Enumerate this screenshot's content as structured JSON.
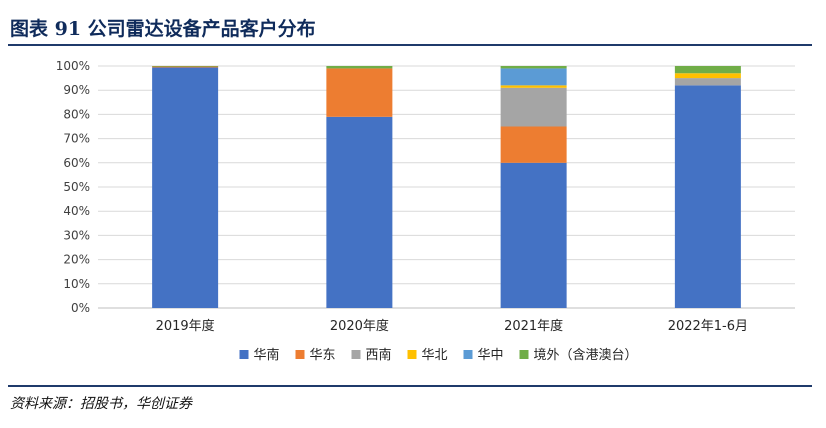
{
  "header": {
    "title": "图表 91   公司雷达设备产品客户分布"
  },
  "chart_data": {
    "type": "bar",
    "stacked": true,
    "categories": [
      "2019年度",
      "2020年度",
      "2021年度",
      "2022年1-6月"
    ],
    "ylim": [
      0,
      100
    ],
    "yticks": [
      "0%",
      "10%",
      "20%",
      "30%",
      "40%",
      "50%",
      "60%",
      "70%",
      "80%",
      "90%",
      "100%"
    ],
    "series": [
      {
        "name": "华南",
        "color": "#4472c4",
        "values": [
          99.4,
          79.0,
          60.0,
          92.0
        ]
      },
      {
        "name": "华东",
        "color": "#ed7d31",
        "values": [
          0.4,
          20.0,
          15.0,
          0.0
        ]
      },
      {
        "name": "西南",
        "color": "#a5a5a5",
        "values": [
          0.0,
          0.0,
          16.0,
          3.0
        ]
      },
      {
        "name": "华北",
        "color": "#ffc000",
        "values": [
          0.0,
          0.0,
          1.0,
          2.0
        ]
      },
      {
        "name": "华中",
        "color": "#5b9bd5",
        "values": [
          0.0,
          0.0,
          7.0,
          0.0
        ]
      },
      {
        "name": "境外（含港澳台）",
        "color": "#70ad47",
        "values": [
          0.2,
          1.0,
          1.0,
          3.0
        ]
      }
    ],
    "legend_position": "bottom",
    "grid": true
  },
  "footer": {
    "source": "资料来源：招股书，华创证券"
  }
}
